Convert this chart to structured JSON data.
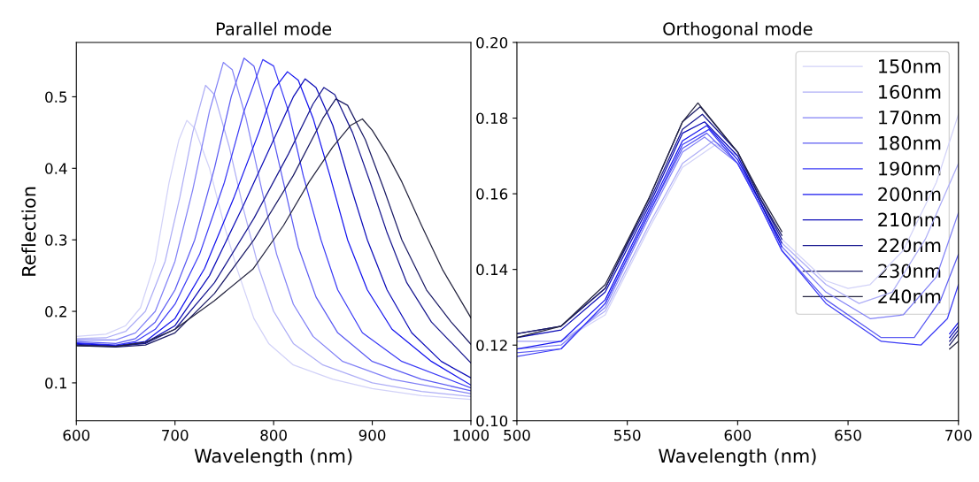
{
  "chart_data": [
    {
      "type": "line",
      "title": "Parallel mode",
      "xlabel": "Wavelength (nm)",
      "ylabel": "Reflection",
      "xlim": [
        600,
        1000
      ],
      "ylim": [
        0.047,
        0.576
      ],
      "xticks": [
        600,
        700,
        800,
        900,
        1000
      ],
      "yticks": [
        0.1,
        0.2,
        0.3,
        0.4,
        0.5
      ],
      "grid": false,
      "legend": false,
      "line_style": "solid",
      "marker": "none",
      "series": [
        {
          "color": "#d2d2f8",
          "x": [
            600,
            630,
            650,
            665,
            680,
            694,
            704,
            712,
            720,
            735,
            750,
            763,
            780,
            795,
            820,
            860,
            900,
            950,
            1000
          ],
          "values": [
            0.165,
            0.168,
            0.18,
            0.205,
            0.27,
            0.38,
            0.44,
            0.467,
            0.456,
            0.4,
            0.32,
            0.259,
            0.19,
            0.155,
            0.125,
            0.105,
            0.092,
            0.082,
            0.077
          ]
        },
        {
          "color": "#aeaef6",
          "x": [
            600,
            630,
            650,
            670,
            690,
            705,
            718,
            731,
            740,
            755,
            770,
            785,
            800,
            820,
            850,
            900,
            950,
            1000
          ],
          "values": [
            0.162,
            0.163,
            0.172,
            0.2,
            0.27,
            0.36,
            0.45,
            0.516,
            0.503,
            0.43,
            0.34,
            0.26,
            0.2,
            0.155,
            0.125,
            0.1,
            0.088,
            0.081
          ]
        },
        {
          "color": "#8282f6",
          "x": [
            600,
            640,
            660,
            680,
            700,
            718,
            735,
            749,
            758,
            772,
            788,
            803,
            820,
            840,
            870,
            920,
            1000
          ],
          "values": [
            0.16,
            0.16,
            0.17,
            0.2,
            0.27,
            0.37,
            0.48,
            0.548,
            0.538,
            0.47,
            0.37,
            0.28,
            0.21,
            0.165,
            0.13,
            0.105,
            0.085
          ]
        },
        {
          "color": "#5c5cf2",
          "x": [
            600,
            640,
            660,
            680,
            700,
            720,
            740,
            757,
            770,
            780,
            795,
            810,
            825,
            843,
            865,
            900,
            950,
            1000
          ],
          "values": [
            0.158,
            0.155,
            0.162,
            0.185,
            0.23,
            0.3,
            0.4,
            0.5,
            0.554,
            0.543,
            0.47,
            0.38,
            0.29,
            0.22,
            0.17,
            0.13,
            0.105,
            0.089
          ]
        },
        {
          "color": "#3c3cf6",
          "x": [
            600,
            640,
            660,
            680,
            700,
            725,
            750,
            770,
            789,
            800,
            815,
            830,
            848,
            865,
            890,
            930,
            1000
          ],
          "values": [
            0.156,
            0.153,
            0.158,
            0.175,
            0.21,
            0.28,
            0.38,
            0.48,
            0.552,
            0.543,
            0.48,
            0.39,
            0.3,
            0.23,
            0.17,
            0.13,
            0.093
          ]
        },
        {
          "color": "#1414ee",
          "x": [
            600,
            640,
            670,
            700,
            730,
            760,
            785,
            800,
            814,
            825,
            840,
            857,
            875,
            895,
            920,
            960,
            1000
          ],
          "values": [
            0.155,
            0.152,
            0.158,
            0.19,
            0.26,
            0.36,
            0.45,
            0.51,
            0.535,
            0.523,
            0.47,
            0.39,
            0.3,
            0.23,
            0.175,
            0.13,
            0.097
          ]
        },
        {
          "color": "#0c0cb8",
          "x": [
            600,
            640,
            670,
            700,
            735,
            770,
            800,
            820,
            832,
            843,
            860,
            877,
            895,
            915,
            940,
            970,
            1000
          ],
          "values": [
            0.154,
            0.151,
            0.156,
            0.18,
            0.25,
            0.35,
            0.44,
            0.5,
            0.525,
            0.513,
            0.46,
            0.38,
            0.3,
            0.23,
            0.17,
            0.13,
            0.107
          ]
        },
        {
          "color": "#181890",
          "x": [
            600,
            640,
            670,
            700,
            740,
            780,
            815,
            840,
            851,
            862,
            880,
            898,
            915,
            935,
            960,
            1000
          ],
          "values": [
            0.153,
            0.151,
            0.155,
            0.175,
            0.24,
            0.33,
            0.42,
            0.49,
            0.513,
            0.503,
            0.45,
            0.38,
            0.31,
            0.24,
            0.185,
            0.128
          ]
        },
        {
          "color": "#1c1c66",
          "x": [
            600,
            640,
            670,
            700,
            740,
            780,
            820,
            850,
            863,
            875,
            893,
            912,
            930,
            955,
            980,
            1000
          ],
          "values": [
            0.152,
            0.15,
            0.153,
            0.17,
            0.225,
            0.3,
            0.39,
            0.47,
            0.497,
            0.488,
            0.44,
            0.37,
            0.3,
            0.23,
            0.185,
            0.154
          ]
        },
        {
          "color": "#262640",
          "x": [
            600,
            640,
            670,
            700,
            740,
            779,
            810,
            836,
            860,
            878,
            890,
            900,
            915,
            930,
            950,
            971,
            1000
          ],
          "values": [
            0.152,
            0.151,
            0.157,
            0.175,
            0.215,
            0.259,
            0.32,
            0.381,
            0.43,
            0.46,
            0.469,
            0.453,
            0.42,
            0.381,
            0.32,
            0.259,
            0.191
          ]
        }
      ]
    },
    {
      "type": "line",
      "title": "Orthogonal mode",
      "xlabel": "Wavelength (nm)",
      "xlim": [
        500,
        700
      ],
      "ylim": [
        0.1,
        0.2
      ],
      "xticks": [
        500,
        550,
        600,
        650,
        700
      ],
      "yticks": [
        {
          "value": 0.1,
          "label": "0.10"
        },
        {
          "value": 0.12,
          "label": "0.12"
        },
        {
          "value": 0.14,
          "label": "0.14"
        },
        {
          "value": 0.16,
          "label": "0.16"
        },
        {
          "value": 0.18,
          "label": "0.18"
        },
        {
          "value": 0.2,
          "label": "0.20"
        }
      ],
      "grid": false,
      "legend": "top right",
      "line_style": "solid",
      "marker": "none",
      "series": [
        {
          "name": "150nm",
          "color": "#d2d2f8",
          "x": [
            500,
            520,
            540,
            560,
            575,
            590,
            600,
            610,
            620,
            640,
            650,
            660,
            675,
            690,
            700
          ],
          "values": [
            0.121,
            0.121,
            0.128,
            0.151,
            0.167,
            0.173,
            0.17,
            0.16,
            0.148,
            0.137,
            0.135,
            0.136,
            0.145,
            0.163,
            0.181
          ]
        },
        {
          "name": "160nm",
          "color": "#aeaef6",
          "x": [
            500,
            520,
            540,
            560,
            575,
            589,
            600,
            610,
            620,
            640,
            655,
            670,
            685,
            700
          ],
          "values": [
            0.121,
            0.121,
            0.129,
            0.152,
            0.168,
            0.174,
            0.17,
            0.159,
            0.147,
            0.136,
            0.131,
            0.134,
            0.148,
            0.168
          ]
        },
        {
          "name": "170nm",
          "color": "#8282f6",
          "x": [
            500,
            520,
            540,
            560,
            575,
            585,
            600,
            610,
            620,
            640,
            660,
            675,
            690,
            700
          ],
          "values": [
            0.119,
            0.12,
            0.13,
            0.154,
            0.171,
            0.175,
            0.168,
            0.158,
            0.146,
            0.134,
            0.127,
            0.128,
            0.138,
            0.155
          ]
        },
        {
          "name": "180nm",
          "color": "#5c5cf2",
          "x": [
            500,
            520,
            540,
            560,
            575,
            586,
            600,
            610,
            620,
            640,
            665,
            680,
            692,
            700
          ],
          "values": [
            0.118,
            0.119,
            0.131,
            0.155,
            0.172,
            0.176,
            0.168,
            0.157,
            0.145,
            0.132,
            0.122,
            0.122,
            0.132,
            0.144
          ]
        },
        {
          "name": "190nm",
          "color": "#3c3cf6",
          "x": [
            500,
            520,
            540,
            560,
            575,
            587,
            600,
            610,
            620,
            640,
            665,
            683,
            695,
            700
          ],
          "values": [
            0.117,
            0.119,
            0.131,
            0.155,
            0.173,
            0.177,
            0.168,
            0.157,
            0.145,
            0.131,
            0.121,
            0.12,
            0.127,
            0.136
          ]
        },
        {
          "name": "200nm",
          "color": "#1414ee",
          "x": [
            500,
            520,
            540,
            560,
            575,
            586,
            600,
            610,
            620,
            null,
            696,
            700
          ],
          "values": [
            0.119,
            0.121,
            0.132,
            0.156,
            0.174,
            0.178,
            0.169,
            0.158,
            0.146,
            null,
            0.123,
            0.126
          ]
        },
        {
          "name": "210nm",
          "color": "#0c0cb8",
          "x": [
            500,
            520,
            540,
            560,
            575,
            585,
            600,
            610,
            620,
            null,
            696,
            700
          ],
          "values": [
            0.122,
            0.124,
            0.134,
            0.157,
            0.176,
            0.179,
            0.17,
            0.158,
            0.147,
            null,
            0.122,
            0.125
          ]
        },
        {
          "name": "220nm",
          "color": "#181890",
          "x": [
            500,
            520,
            540,
            560,
            575,
            584,
            600,
            610,
            620,
            null,
            696,
            700
          ],
          "values": [
            0.123,
            0.125,
            0.135,
            0.158,
            0.177,
            0.181,
            0.171,
            0.159,
            0.148,
            null,
            0.121,
            0.124
          ]
        },
        {
          "name": "230nm",
          "color": "#1c1c66",
          "x": [
            500,
            520,
            540,
            560,
            575,
            583,
            600,
            610,
            620,
            null,
            696,
            700
          ],
          "values": [
            0.123,
            0.125,
            0.135,
            0.159,
            0.179,
            0.183,
            0.171,
            0.159,
            0.149,
            null,
            0.12,
            0.123
          ]
        },
        {
          "name": "240nm",
          "color": "#262640",
          "x": [
            500,
            520,
            540,
            560,
            575,
            582,
            600,
            610,
            620,
            null,
            696,
            700
          ],
          "values": [
            0.122,
            0.125,
            0.136,
            0.159,
            0.179,
            0.184,
            0.171,
            0.16,
            0.15,
            null,
            0.119,
            0.121
          ]
        }
      ]
    }
  ]
}
